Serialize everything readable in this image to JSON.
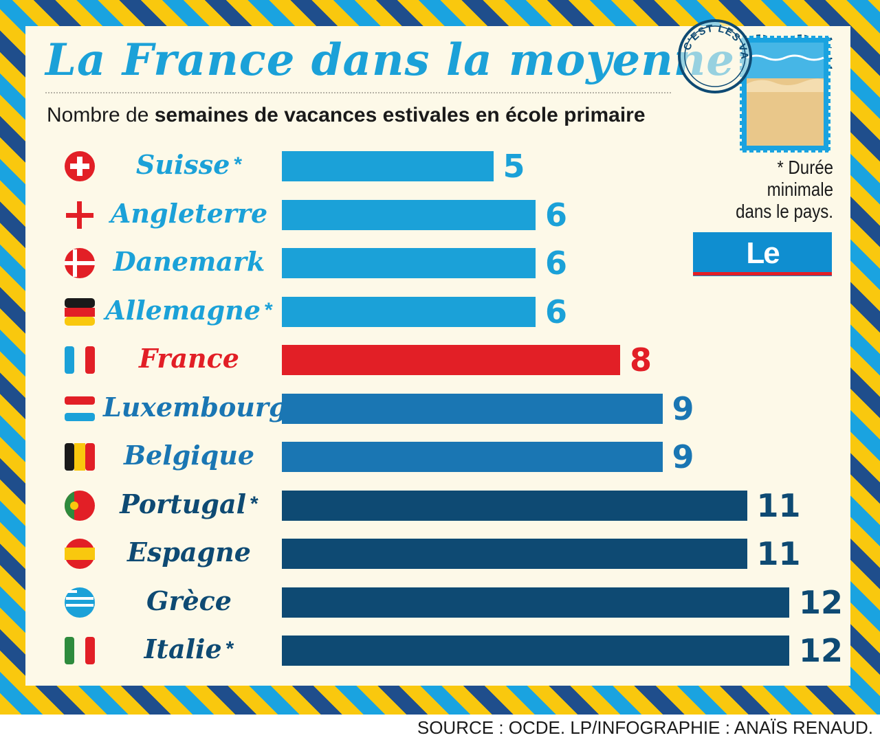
{
  "title": "La France dans la moyenne",
  "subtitle": {
    "prefix": "Nombre de ",
    "bold": "semaines de vacances estivales en école primaire"
  },
  "footnote": "* Durée\nminimale\ndans le pays.",
  "logo": "Le Parisien",
  "stamp": {
    "text": "C'EST LES VACANCES"
  },
  "source": "SOURCE : OCDE.    LP/INFOGRAPHIE : ANAÏS RENAUD.",
  "colors": {
    "light_blue": "#1ba1d8",
    "mid_blue": "#1a76b3",
    "dark_blue": "#0e4a73",
    "red": "#e21f26",
    "stripe_yellow": "#f9c80e",
    "stripe_blue": "#1aa3e0",
    "stripe_navy": "#1f4e8c",
    "panel": "#fdf9e8"
  },
  "chart_data": {
    "type": "bar",
    "orientation": "horizontal",
    "title": "La France dans la moyenne",
    "subtitle": "Nombre de semaines de vacances estivales en école primaire",
    "categories": [
      "Suisse",
      "Angleterre",
      "Danemark",
      "Allemagne",
      "France",
      "Luxembourg",
      "Belgique",
      "Portugal",
      "Espagne",
      "Grèce",
      "Italie"
    ],
    "values": [
      5,
      6,
      6,
      6,
      8,
      9,
      9,
      11,
      11,
      12,
      12
    ],
    "asterisk": [
      true,
      false,
      false,
      true,
      false,
      false,
      false,
      true,
      false,
      false,
      true
    ],
    "tier": [
      "light",
      "light",
      "light",
      "light",
      "highlight",
      "mid",
      "mid",
      "dark",
      "dark",
      "dark",
      "dark"
    ],
    "flags": [
      "switzerland-flag-icon",
      "england-flag-icon",
      "denmark-flag-icon",
      "germany-flag-icon",
      "france-flag-icon",
      "luxembourg-flag-icon",
      "belgium-flag-icon",
      "portugal-flag-icon",
      "spain-flag-icon",
      "greece-flag-icon",
      "italy-flag-icon"
    ],
    "xlim": [
      0,
      12
    ],
    "grid": false,
    "legend": "none",
    "xlabel": "",
    "ylabel": ""
  }
}
